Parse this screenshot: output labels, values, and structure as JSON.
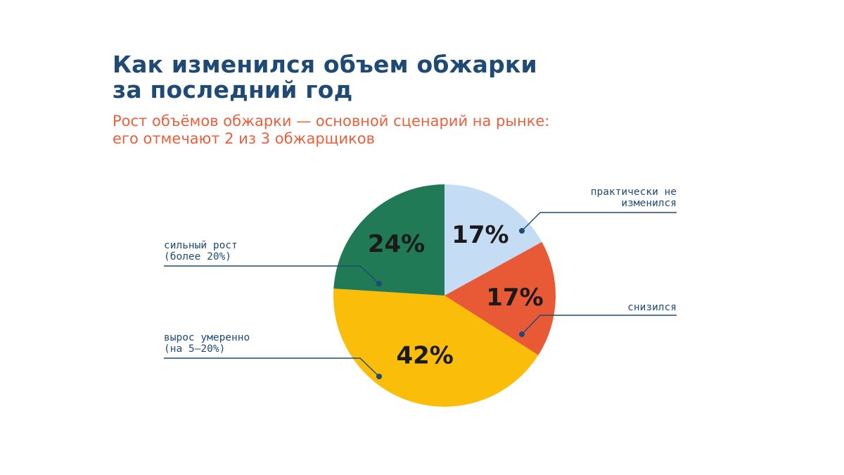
{
  "header": {
    "title_line1": "Как изменился объем обжарки",
    "title_line2": "за последний год",
    "subtitle_line1": "Рост объёмов обжарки — основной сценарий на рынке:",
    "subtitle_line2": "его отмечают 2 из 3 обжарщиков"
  },
  "colors": {
    "title": "#1f4a75",
    "subtitle": "#e8603c",
    "callout": "#1f4a75"
  },
  "chart_data": {
    "type": "pie",
    "unit": "%",
    "start": "12 o'clock",
    "direction": "clockwise",
    "slices": [
      {
        "label_lines": [
          "практически не",
          "изменился"
        ],
        "value": 17,
        "value_label": "17%",
        "color": "#c5dcf5",
        "side": "right"
      },
      {
        "label_lines": [
          "снизился"
        ],
        "value": 17,
        "value_label": "17%",
        "color": "#e85a36",
        "side": "right"
      },
      {
        "label_lines": [
          "вырос умеренно",
          "(на 5–20%)"
        ],
        "value": 42,
        "value_label": "42%",
        "color": "#f9bd0a",
        "side": "left"
      },
      {
        "label_lines": [
          "сильный рост",
          "(более 20%)"
        ],
        "value": 24,
        "value_label": "24%",
        "color": "#1f7a55",
        "side": "left"
      }
    ]
  }
}
